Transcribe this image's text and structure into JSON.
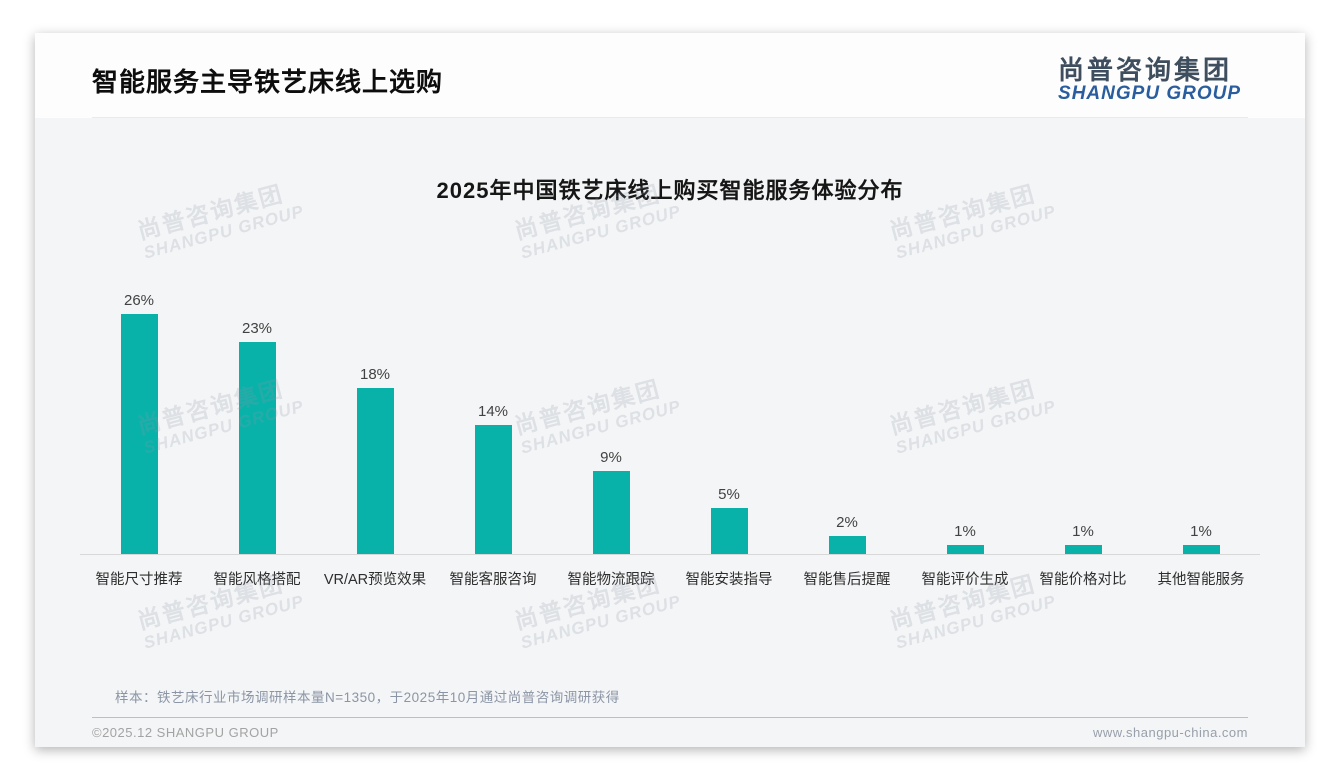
{
  "page": {
    "title": "智能服务主导铁艺床线上选购"
  },
  "logo": {
    "cn": "尚普咨询集团",
    "en": "SHANGPU GROUP"
  },
  "chart_data": {
    "type": "bar",
    "title": "2025年中国铁艺床线上购买智能服务体验分布",
    "categories": [
      "智能尺寸推荐",
      "智能风格搭配",
      "VR/AR预览效果",
      "智能客服咨询",
      "智能物流跟踪",
      "智能安装指导",
      "智能售后提醒",
      "智能评价生成",
      "智能价格对比",
      "其他智能服务"
    ],
    "values": [
      26,
      23,
      18,
      14,
      9,
      5,
      2,
      1,
      1,
      1
    ],
    "unit": "%",
    "bar_color": "#09b2a9",
    "xlabel": "",
    "ylabel": "",
    "ylim": [
      0,
      28
    ],
    "grid": false,
    "legend": "none",
    "value_labels": true
  },
  "note": "样本：铁艺床行业市场调研样本量N=1350，于2025年10月通过尚普咨询调研获得",
  "footer": {
    "left": "©2025.12 SHANGPU GROUP",
    "right": "www.shangpu-china.com"
  },
  "watermark": {
    "cn": "尚普咨询集团",
    "en": "SHANGPU GROUP"
  }
}
